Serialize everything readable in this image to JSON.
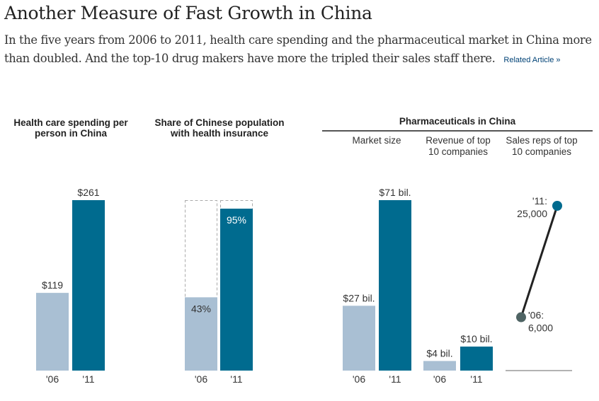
{
  "header": {
    "title": "Another Measure of Fast Growth in China",
    "deck": "In the five years from 2006 to 2011, health care spending and the pharmaceutical market in China more than doubled. And the top-10 drug makers have more the tripled their sales staff there.",
    "related_link": "Related Article »"
  },
  "colors": {
    "year_2006": "#a9bfd3",
    "year_2011": "#006b8f",
    "dot_2006": "#4f6464",
    "line": "#222222",
    "dashed_outline": "#aaaaaa"
  },
  "panels": {
    "spending_title": "Health care spending per person in China",
    "insurance_title": "Share of Chinese population with health insurance",
    "pharma_title": "Pharmaceuticals in China",
    "market_title": "Market size",
    "revenue_title": "Revenue of top 10 companies",
    "reps_title": "Sales reps of top 10 companies"
  },
  "chart_data": [
    {
      "type": "bar",
      "id": "spending",
      "title": "Health care spending per person in China",
      "categories": [
        "'06",
        "'11"
      ],
      "values": [
        119,
        261
      ],
      "labels": [
        "$119",
        "$261"
      ],
      "unit": "USD"
    },
    {
      "type": "bar",
      "id": "insurance",
      "title": "Share of Chinese population with health insurance",
      "categories": [
        "'06",
        "'11"
      ],
      "values": [
        43,
        95
      ],
      "labels": [
        "43%",
        "95%"
      ],
      "ylim": [
        0,
        100
      ],
      "unit": "percent"
    },
    {
      "type": "bar",
      "id": "market",
      "title": "Pharmaceuticals in China: Market size",
      "categories": [
        "'06",
        "'11"
      ],
      "values": [
        27,
        71
      ],
      "labels": [
        "$27 bil.",
        "$71 bil."
      ],
      "unit": "USD billions"
    },
    {
      "type": "bar",
      "id": "revenue",
      "title": "Pharmaceuticals in China: Revenue of top 10 companies",
      "categories": [
        "'06",
        "'11"
      ],
      "values": [
        4,
        10
      ],
      "labels": [
        "$4 bil.",
        "$10 bil."
      ],
      "unit": "USD billions"
    },
    {
      "type": "line",
      "id": "reps",
      "title": "Pharmaceuticals in China: Sales reps of top 10 companies",
      "x": [
        "'06",
        "'11"
      ],
      "values": [
        6000,
        25000
      ],
      "labels": [
        [
          "'06:",
          "6,000"
        ],
        [
          "'11:",
          "25,000"
        ]
      ]
    }
  ]
}
